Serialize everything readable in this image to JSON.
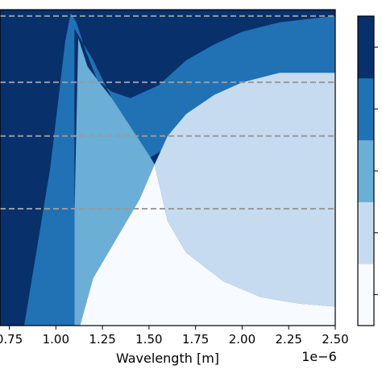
{
  "chart_data": {
    "type": "heatmap",
    "title": "",
    "xlabel": "Wavelength [m]",
    "x_offset_text": "1e−6",
    "xlim": [
      0.7,
      2.5
    ],
    "ylim": [
      0,
      1
    ],
    "x_ticks": [
      {
        "value": 0.75,
        "label": "0.75"
      },
      {
        "value": 1.0,
        "label": "1.00"
      },
      {
        "value": 1.25,
        "label": "1.25"
      },
      {
        "value": 1.5,
        "label": "1.50"
      },
      {
        "value": 1.75,
        "label": "1.75"
      },
      {
        "value": 2.0,
        "label": "2.00"
      },
      {
        "value": 2.25,
        "label": "2.25"
      },
      {
        "value": 2.5,
        "label": "2.50"
      }
    ],
    "levels": [
      {
        "level": 0,
        "color": "#f7fbff"
      },
      {
        "level": 1,
        "color": "#c6dbef"
      },
      {
        "level": 2,
        "color": "#6baed6"
      },
      {
        "level": 3,
        "color": "#2171b5"
      },
      {
        "level": 4,
        "color": "#08306b"
      }
    ],
    "grid": "horizontal dashed",
    "hlines": [
      0.02,
      0.23,
      0.4,
      0.63
    ],
    "hline_color": "#9a9a9a",
    "regions": [
      {
        "level": 3,
        "points": [
          [
            0.83,
            1.0
          ],
          [
            0.9,
            0.75
          ],
          [
            0.97,
            0.5
          ],
          [
            1.02,
            0.25
          ],
          [
            1.05,
            0.1
          ],
          [
            1.08,
            0.01
          ],
          [
            1.11,
            0.04
          ],
          [
            1.16,
            0.13
          ],
          [
            1.22,
            0.22
          ],
          [
            1.3,
            0.26
          ],
          [
            1.4,
            0.28
          ],
          [
            1.55,
            0.24
          ],
          [
            1.7,
            0.16
          ],
          [
            1.85,
            0.11
          ],
          [
            2.0,
            0.07
          ],
          [
            2.2,
            0.04
          ],
          [
            2.5,
            0.02
          ],
          [
            2.5,
            0.2
          ],
          [
            2.3,
            0.22
          ],
          [
            2.1,
            0.27
          ],
          [
            1.9,
            0.33
          ],
          [
            1.7,
            0.4
          ],
          [
            1.5,
            0.47
          ],
          [
            1.5,
            0.46
          ],
          [
            1.4,
            0.37
          ],
          [
            1.3,
            0.28
          ],
          [
            1.2,
            0.16
          ],
          [
            1.1,
            0.06
          ],
          [
            1.1,
            1.0
          ]
        ]
      },
      {
        "level": 2,
        "points": [
          [
            1.1,
            1.0
          ],
          [
            1.1,
            0.65
          ],
          [
            1.12,
            0.09
          ],
          [
            1.17,
            0.18
          ],
          [
            1.22,
            0.22
          ],
          [
            1.3,
            0.28
          ],
          [
            1.4,
            0.37
          ],
          [
            1.5,
            0.46
          ],
          [
            1.53,
            0.49
          ],
          [
            1.45,
            0.6
          ],
          [
            1.3,
            0.75
          ],
          [
            1.2,
            0.85
          ],
          [
            1.13,
            1.0
          ]
        ]
      },
      {
        "level": 1,
        "points": [
          [
            1.53,
            0.49
          ],
          [
            1.6,
            0.4
          ],
          [
            1.7,
            0.33
          ],
          [
            1.85,
            0.27
          ],
          [
            2.0,
            0.23
          ],
          [
            2.2,
            0.2
          ],
          [
            2.5,
            0.2
          ],
          [
            2.5,
            0.94
          ],
          [
            2.3,
            0.93
          ],
          [
            2.1,
            0.91
          ],
          [
            1.9,
            0.86
          ],
          [
            1.7,
            0.77
          ],
          [
            1.6,
            0.67
          ]
        ]
      },
      {
        "level": 0,
        "points": [
          [
            1.13,
            1.0
          ],
          [
            1.2,
            0.85
          ],
          [
            1.3,
            0.75
          ],
          [
            1.45,
            0.6
          ],
          [
            1.53,
            0.49
          ],
          [
            1.6,
            0.67
          ],
          [
            1.7,
            0.77
          ],
          [
            1.9,
            0.86
          ],
          [
            2.1,
            0.91
          ],
          [
            2.3,
            0.93
          ],
          [
            2.5,
            0.94
          ],
          [
            2.5,
            1.0
          ]
        ]
      }
    ]
  },
  "colorbar": {
    "colors": [
      "#f7fbff",
      "#c6dbef",
      "#6baed6",
      "#2171b5",
      "#08306b"
    ]
  }
}
